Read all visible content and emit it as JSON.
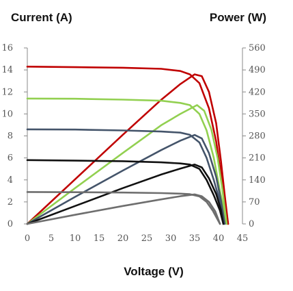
{
  "chart_data": {
    "type": "line",
    "title": "",
    "xlabel": "Voltage (V)",
    "ylabel_left": "Current (A)",
    "ylabel_right": "Power (W)",
    "xlim": [
      0,
      45
    ],
    "ylim_left": [
      0,
      16
    ],
    "ylim_right": [
      0,
      560
    ],
    "x_ticks": [
      "0",
      "5",
      "10",
      "15",
      "20",
      "25",
      "30",
      "35",
      "40",
      "45"
    ],
    "y_left_ticks": [
      "0",
      "2",
      "4",
      "6",
      "8",
      "10",
      "12",
      "14",
      "16"
    ],
    "y_right_ticks": [
      "0",
      "70",
      "140",
      "210",
      "280",
      "350",
      "420",
      "490",
      "560"
    ],
    "grid": false,
    "legend": "none",
    "series": [
      {
        "color": "#c00000",
        "iv": [
          [
            0,
            14.3
          ],
          [
            10,
            14.25
          ],
          [
            20,
            14.2
          ],
          [
            28,
            14.1
          ],
          [
            32,
            13.9
          ],
          [
            34,
            13.6
          ],
          [
            36,
            12.8
          ],
          [
            38,
            10.5
          ],
          [
            39.5,
            7.5
          ],
          [
            40.5,
            4.5
          ],
          [
            41.3,
            2.0
          ],
          [
            42,
            0
          ]
        ],
        "pv": [
          [
            0,
            0
          ],
          [
            10,
            142
          ],
          [
            20,
            284
          ],
          [
            28,
            395
          ],
          [
            32,
            445
          ],
          [
            35,
            476
          ],
          [
            36.5,
            470
          ],
          [
            38,
            420
          ],
          [
            39.5,
            320
          ],
          [
            40.5,
            200
          ],
          [
            41.3,
            90
          ],
          [
            42,
            0
          ]
        ]
      },
      {
        "color": "#92d050",
        "iv": [
          [
            0,
            11.4
          ],
          [
            10,
            11.38
          ],
          [
            20,
            11.3
          ],
          [
            28,
            11.2
          ],
          [
            32,
            11.0
          ],
          [
            34,
            10.8
          ],
          [
            36,
            10.0
          ],
          [
            37.5,
            8.5
          ],
          [
            39,
            6.0
          ],
          [
            40.3,
            3.0
          ],
          [
            41.2,
            1.0
          ],
          [
            41.7,
            0
          ]
        ],
        "pv": [
          [
            0,
            0
          ],
          [
            10,
            114
          ],
          [
            20,
            226
          ],
          [
            28,
            314
          ],
          [
            32,
            350
          ],
          [
            35.5,
            378
          ],
          [
            37,
            360
          ],
          [
            38.5,
            300
          ],
          [
            39.8,
            210
          ],
          [
            40.8,
            110
          ],
          [
            41.7,
            0
          ]
        ]
      },
      {
        "color": "#44546a",
        "iv": [
          [
            0,
            8.6
          ],
          [
            10,
            8.58
          ],
          [
            20,
            8.5
          ],
          [
            28,
            8.4
          ],
          [
            32,
            8.3
          ],
          [
            34,
            8.1
          ],
          [
            36,
            7.4
          ],
          [
            37.5,
            6.0
          ],
          [
            39,
            4.0
          ],
          [
            40.3,
            2.0
          ],
          [
            41.3,
            0
          ]
        ],
        "pv": [
          [
            0,
            0
          ],
          [
            10,
            86
          ],
          [
            20,
            170
          ],
          [
            28,
            235
          ],
          [
            32,
            265
          ],
          [
            35,
            283
          ],
          [
            36.5,
            272
          ],
          [
            38,
            225
          ],
          [
            39.5,
            150
          ],
          [
            40.5,
            75
          ],
          [
            41.3,
            0
          ]
        ]
      },
      {
        "color": "#111111",
        "iv": [
          [
            0,
            5.8
          ],
          [
            10,
            5.75
          ],
          [
            20,
            5.7
          ],
          [
            28,
            5.6
          ],
          [
            32,
            5.5
          ],
          [
            34,
            5.4
          ],
          [
            36,
            5.0
          ],
          [
            37.5,
            4.0
          ],
          [
            39,
            2.6
          ],
          [
            40.3,
            1.2
          ],
          [
            41,
            0
          ]
        ],
        "pv": [
          [
            0,
            0
          ],
          [
            10,
            57
          ],
          [
            20,
            114
          ],
          [
            28,
            157
          ],
          [
            32,
            176
          ],
          [
            35,
            189
          ],
          [
            36.5,
            180
          ],
          [
            38,
            145
          ],
          [
            39.5,
            95
          ],
          [
            40.5,
            45
          ],
          [
            41,
            0
          ]
        ]
      },
      {
        "color": "#6e6e6e",
        "iv": [
          [
            0,
            2.9
          ],
          [
            10,
            2.88
          ],
          [
            20,
            2.85
          ],
          [
            28,
            2.8
          ],
          [
            32,
            2.75
          ],
          [
            34,
            2.7
          ],
          [
            36,
            2.5
          ],
          [
            37.5,
            2.0
          ],
          [
            38.8,
            1.2
          ],
          [
            39.8,
            0.4
          ],
          [
            40.3,
            0
          ]
        ],
        "pv": [
          [
            0,
            0
          ],
          [
            10,
            29
          ],
          [
            20,
            57
          ],
          [
            28,
            78
          ],
          [
            32,
            88
          ],
          [
            35,
            94
          ],
          [
            36.5,
            88
          ],
          [
            38,
            70
          ],
          [
            39.3,
            40
          ],
          [
            40.3,
            0
          ]
        ]
      }
    ]
  }
}
